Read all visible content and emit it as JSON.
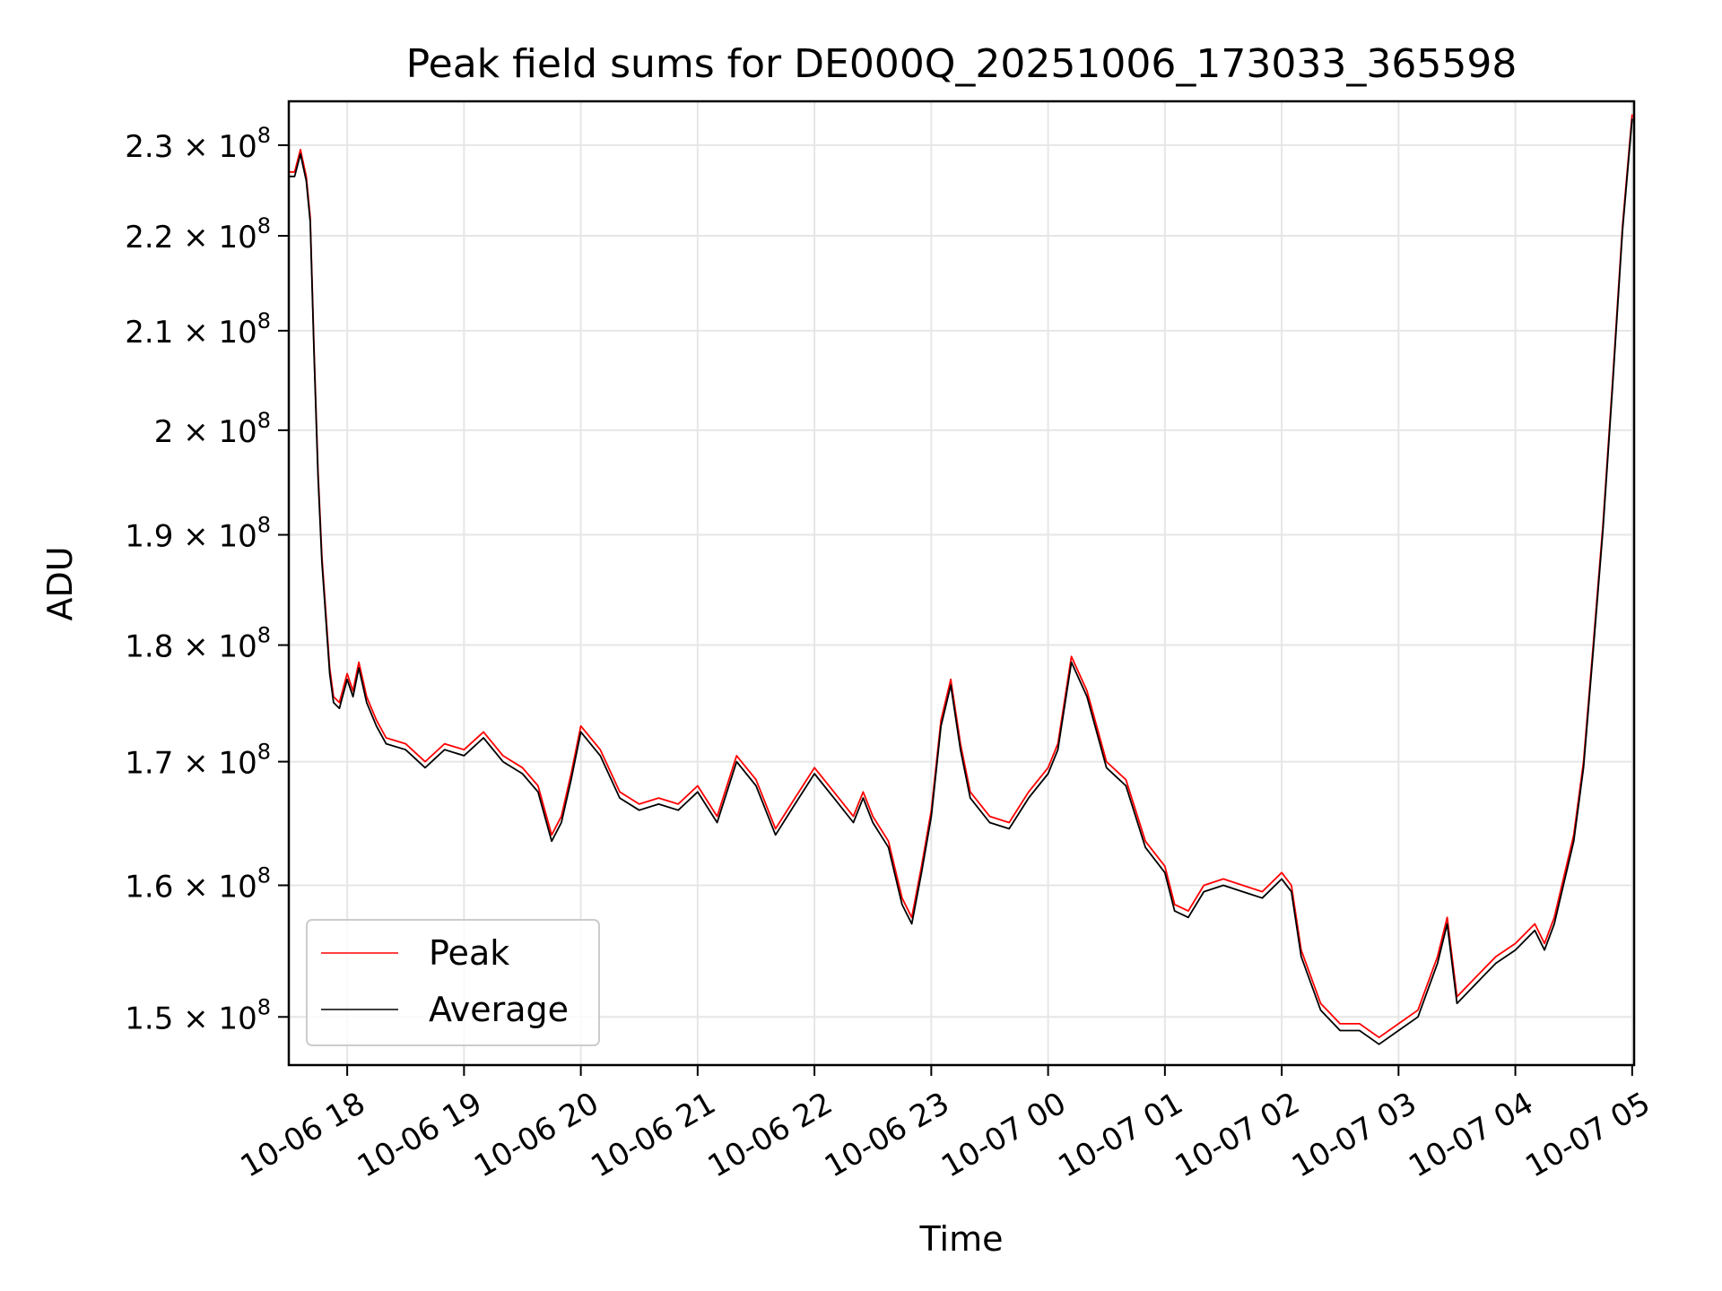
{
  "chart_data": {
    "type": "line",
    "title": "Peak field sums for DE000Q_20251006_173033_365598",
    "xlabel": "Time",
    "ylabel": "ADU",
    "x_scale": "time",
    "y_scale": "log",
    "xlim": [
      "2025-10-06 17:30",
      "2025-10-07 05:01"
    ],
    "ylim": [
      146500000,
      235000000
    ],
    "x_ticks": [
      {
        "value": "2025-10-06 18:00",
        "label": "10-06 18"
      },
      {
        "value": "2025-10-06 19:00",
        "label": "10-06 19"
      },
      {
        "value": "2025-10-06 20:00",
        "label": "10-06 20"
      },
      {
        "value": "2025-10-06 21:00",
        "label": "10-06 21"
      },
      {
        "value": "2025-10-06 22:00",
        "label": "10-06 22"
      },
      {
        "value": "2025-10-06 23:00",
        "label": "10-06 23"
      },
      {
        "value": "2025-10-07 00:00",
        "label": "10-07 00"
      },
      {
        "value": "2025-10-07 01:00",
        "label": "10-07 01"
      },
      {
        "value": "2025-10-07 02:00",
        "label": "10-07 02"
      },
      {
        "value": "2025-10-07 03:00",
        "label": "10-07 03"
      },
      {
        "value": "2025-10-07 04:00",
        "label": "10-07 04"
      },
      {
        "value": "2025-10-07 05:00",
        "label": "10-07 05"
      }
    ],
    "y_ticks": [
      {
        "value": 150000000,
        "mantissa": "1.5",
        "label": "1.5 × 10^8"
      },
      {
        "value": 160000000,
        "mantissa": "1.6",
        "label": "1.6 × 10^8"
      },
      {
        "value": 170000000,
        "mantissa": "1.7",
        "label": "1.7 × 10^8"
      },
      {
        "value": 180000000,
        "mantissa": "1.8",
        "label": "1.8 × 10^8"
      },
      {
        "value": 190000000,
        "mantissa": "1.9",
        "label": "1.9 × 10^8"
      },
      {
        "value": 200000000,
        "mantissa": "2",
        "label": "2 × 10^8"
      },
      {
        "value": 210000000,
        "mantissa": "2.1",
        "label": "2.1 × 10^8"
      },
      {
        "value": 220000000,
        "mantissa": "2.2",
        "label": "2.2 × 10^8"
      },
      {
        "value": 230000000,
        "mantissa": "2.3",
        "label": "2.3 × 10^8"
      }
    ],
    "grid": true,
    "legend": {
      "position": "lower-left"
    },
    "series": [
      {
        "name": "Peak",
        "color": "#ff0000",
        "points": [
          [
            "2025-10-06 17:30",
            227000000
          ],
          [
            "2025-10-06 17:33",
            227000000
          ],
          [
            "2025-10-06 17:36",
            229500000
          ],
          [
            "2025-10-06 17:39",
            226500000
          ],
          [
            "2025-10-06 17:41",
            222000000
          ],
          [
            "2025-10-06 17:43",
            208000000
          ],
          [
            "2025-10-06 17:45",
            196000000
          ],
          [
            "2025-10-06 17:47",
            188000000
          ],
          [
            "2025-10-06 17:49",
            183000000
          ],
          [
            "2025-10-06 17:51",
            178000000
          ],
          [
            "2025-10-06 17:53",
            175500000
          ],
          [
            "2025-10-06 17:56",
            175000000
          ],
          [
            "2025-10-06 18:00",
            177500000
          ],
          [
            "2025-10-06 18:03",
            176000000
          ],
          [
            "2025-10-06 18:06",
            178500000
          ],
          [
            "2025-10-06 18:10",
            175500000
          ],
          [
            "2025-10-06 18:15",
            173500000
          ],
          [
            "2025-10-06 18:20",
            172000000
          ],
          [
            "2025-10-06 18:30",
            171500000
          ],
          [
            "2025-10-06 18:40",
            170000000
          ],
          [
            "2025-10-06 18:50",
            171500000
          ],
          [
            "2025-10-06 19:00",
            171000000
          ],
          [
            "2025-10-06 19:10",
            172500000
          ],
          [
            "2025-10-06 19:20",
            170500000
          ],
          [
            "2025-10-06 19:30",
            169500000
          ],
          [
            "2025-10-06 19:38",
            168000000
          ],
          [
            "2025-10-06 19:45",
            164000000
          ],
          [
            "2025-10-06 19:50",
            165500000
          ],
          [
            "2025-10-06 19:55",
            169000000
          ],
          [
            "2025-10-06 20:00",
            173000000
          ],
          [
            "2025-10-06 20:10",
            171000000
          ],
          [
            "2025-10-06 20:20",
            167500000
          ],
          [
            "2025-10-06 20:30",
            166500000
          ],
          [
            "2025-10-06 20:40",
            167000000
          ],
          [
            "2025-10-06 20:50",
            166500000
          ],
          [
            "2025-10-06 21:00",
            168000000
          ],
          [
            "2025-10-06 21:10",
            165500000
          ],
          [
            "2025-10-06 21:20",
            170500000
          ],
          [
            "2025-10-06 21:30",
            168500000
          ],
          [
            "2025-10-06 21:40",
            164500000
          ],
          [
            "2025-10-06 21:50",
            167000000
          ],
          [
            "2025-10-06 22:00",
            169500000
          ],
          [
            "2025-10-06 22:10",
            167500000
          ],
          [
            "2025-10-06 22:20",
            165500000
          ],
          [
            "2025-10-06 22:25",
            167500000
          ],
          [
            "2025-10-06 22:30",
            165500000
          ],
          [
            "2025-10-06 22:38",
            163500000
          ],
          [
            "2025-10-06 22:45",
            159000000
          ],
          [
            "2025-10-06 22:50",
            157500000
          ],
          [
            "2025-10-06 22:55",
            161500000
          ],
          [
            "2025-10-06 23:00",
            166000000
          ],
          [
            "2025-10-06 23:05",
            173500000
          ],
          [
            "2025-10-06 23:10",
            177000000
          ],
          [
            "2025-10-06 23:15",
            171500000
          ],
          [
            "2025-10-06 23:20",
            167500000
          ],
          [
            "2025-10-06 23:30",
            165500000
          ],
          [
            "2025-10-06 23:40",
            165000000
          ],
          [
            "2025-10-06 23:50",
            167500000
          ],
          [
            "2025-10-07 00:00",
            169500000
          ],
          [
            "2025-10-07 00:05",
            171500000
          ],
          [
            "2025-10-07 00:12",
            179000000
          ],
          [
            "2025-10-07 00:20",
            176000000
          ],
          [
            "2025-10-07 00:30",
            170000000
          ],
          [
            "2025-10-07 00:40",
            168500000
          ],
          [
            "2025-10-07 00:50",
            163500000
          ],
          [
            "2025-10-07 01:00",
            161500000
          ],
          [
            "2025-10-07 01:05",
            158500000
          ],
          [
            "2025-10-07 01:12",
            158000000
          ],
          [
            "2025-10-07 01:20",
            160000000
          ],
          [
            "2025-10-07 01:30",
            160500000
          ],
          [
            "2025-10-07 01:40",
            160000000
          ],
          [
            "2025-10-07 01:50",
            159500000
          ],
          [
            "2025-10-07 02:00",
            161000000
          ],
          [
            "2025-10-07 02:05",
            160000000
          ],
          [
            "2025-10-07 02:10",
            155000000
          ],
          [
            "2025-10-07 02:20",
            151000000
          ],
          [
            "2025-10-07 02:30",
            149500000
          ],
          [
            "2025-10-07 02:40",
            149500000
          ],
          [
            "2025-10-07 02:50",
            148500000
          ],
          [
            "2025-10-07 03:00",
            149500000
          ],
          [
            "2025-10-07 03:10",
            150500000
          ],
          [
            "2025-10-07 03:20",
            154500000
          ],
          [
            "2025-10-07 03:25",
            157500000
          ],
          [
            "2025-10-07 03:30",
            151500000
          ],
          [
            "2025-10-07 03:40",
            153000000
          ],
          [
            "2025-10-07 03:50",
            154500000
          ],
          [
            "2025-10-07 04:00",
            155500000
          ],
          [
            "2025-10-07 04:10",
            157000000
          ],
          [
            "2025-10-07 04:15",
            155500000
          ],
          [
            "2025-10-07 04:20",
            157500000
          ],
          [
            "2025-10-07 04:30",
            164000000
          ],
          [
            "2025-10-07 04:35",
            170000000
          ],
          [
            "2025-10-07 04:40",
            180000000
          ],
          [
            "2025-10-07 04:45",
            191000000
          ],
          [
            "2025-10-07 04:50",
            205000000
          ],
          [
            "2025-10-07 04:55",
            221000000
          ],
          [
            "2025-10-07 05:00",
            233500000
          ]
        ]
      },
      {
        "name": "Average",
        "color": "#000000",
        "points": [
          [
            "2025-10-06 17:30",
            226500000
          ],
          [
            "2025-10-06 17:33",
            226500000
          ],
          [
            "2025-10-06 17:36",
            229000000
          ],
          [
            "2025-10-06 17:39",
            226000000
          ],
          [
            "2025-10-06 17:41",
            221500000
          ],
          [
            "2025-10-06 17:43",
            207500000
          ],
          [
            "2025-10-06 17:45",
            195500000
          ],
          [
            "2025-10-06 17:47",
            187500000
          ],
          [
            "2025-10-06 17:49",
            182500000
          ],
          [
            "2025-10-06 17:51",
            177500000
          ],
          [
            "2025-10-06 17:53",
            175000000
          ],
          [
            "2025-10-06 17:56",
            174500000
          ],
          [
            "2025-10-06 18:00",
            177000000
          ],
          [
            "2025-10-06 18:03",
            175500000
          ],
          [
            "2025-10-06 18:06",
            178000000
          ],
          [
            "2025-10-06 18:10",
            175000000
          ],
          [
            "2025-10-06 18:15",
            173000000
          ],
          [
            "2025-10-06 18:20",
            171500000
          ],
          [
            "2025-10-06 18:30",
            171000000
          ],
          [
            "2025-10-06 18:40",
            169500000
          ],
          [
            "2025-10-06 18:50",
            171000000
          ],
          [
            "2025-10-06 19:00",
            170500000
          ],
          [
            "2025-10-06 19:10",
            172000000
          ],
          [
            "2025-10-06 19:20",
            170000000
          ],
          [
            "2025-10-06 19:30",
            169000000
          ],
          [
            "2025-10-06 19:38",
            167500000
          ],
          [
            "2025-10-06 19:45",
            163500000
          ],
          [
            "2025-10-06 19:50",
            165000000
          ],
          [
            "2025-10-06 19:55",
            168500000
          ],
          [
            "2025-10-06 20:00",
            172500000
          ],
          [
            "2025-10-06 20:10",
            170500000
          ],
          [
            "2025-10-06 20:20",
            167000000
          ],
          [
            "2025-10-06 20:30",
            166000000
          ],
          [
            "2025-10-06 20:40",
            166500000
          ],
          [
            "2025-10-06 20:50",
            166000000
          ],
          [
            "2025-10-06 21:00",
            167500000
          ],
          [
            "2025-10-06 21:10",
            165000000
          ],
          [
            "2025-10-06 21:20",
            170000000
          ],
          [
            "2025-10-06 21:30",
            168000000
          ],
          [
            "2025-10-06 21:40",
            164000000
          ],
          [
            "2025-10-06 21:50",
            166500000
          ],
          [
            "2025-10-06 22:00",
            169000000
          ],
          [
            "2025-10-06 22:10",
            167000000
          ],
          [
            "2025-10-06 22:20",
            165000000
          ],
          [
            "2025-10-06 22:25",
            167000000
          ],
          [
            "2025-10-06 22:30",
            165000000
          ],
          [
            "2025-10-06 22:38",
            163000000
          ],
          [
            "2025-10-06 22:45",
            158500000
          ],
          [
            "2025-10-06 22:50",
            157000000
          ],
          [
            "2025-10-06 22:55",
            161000000
          ],
          [
            "2025-10-06 23:00",
            165500000
          ],
          [
            "2025-10-06 23:05",
            173000000
          ],
          [
            "2025-10-06 23:10",
            176500000
          ],
          [
            "2025-10-06 23:15",
            171000000
          ],
          [
            "2025-10-06 23:20",
            167000000
          ],
          [
            "2025-10-06 23:30",
            165000000
          ],
          [
            "2025-10-06 23:40",
            164500000
          ],
          [
            "2025-10-06 23:50",
            167000000
          ],
          [
            "2025-10-07 00:00",
            169000000
          ],
          [
            "2025-10-07 00:05",
            171000000
          ],
          [
            "2025-10-07 00:12",
            178500000
          ],
          [
            "2025-10-07 00:20",
            175500000
          ],
          [
            "2025-10-07 00:30",
            169500000
          ],
          [
            "2025-10-07 00:40",
            168000000
          ],
          [
            "2025-10-07 00:50",
            163000000
          ],
          [
            "2025-10-07 01:00",
            161000000
          ],
          [
            "2025-10-07 01:05",
            158000000
          ],
          [
            "2025-10-07 01:12",
            157500000
          ],
          [
            "2025-10-07 01:20",
            159500000
          ],
          [
            "2025-10-07 01:30",
            160000000
          ],
          [
            "2025-10-07 01:40",
            159500000
          ],
          [
            "2025-10-07 01:50",
            159000000
          ],
          [
            "2025-10-07 02:00",
            160500000
          ],
          [
            "2025-10-07 02:05",
            159500000
          ],
          [
            "2025-10-07 02:10",
            154500000
          ],
          [
            "2025-10-07 02:20",
            150500000
          ],
          [
            "2025-10-07 02:30",
            149000000
          ],
          [
            "2025-10-07 02:40",
            149000000
          ],
          [
            "2025-10-07 02:50",
            148000000
          ],
          [
            "2025-10-07 03:00",
            149000000
          ],
          [
            "2025-10-07 03:10",
            150000000
          ],
          [
            "2025-10-07 03:20",
            154000000
          ],
          [
            "2025-10-07 03:25",
            157000000
          ],
          [
            "2025-10-07 03:30",
            151000000
          ],
          [
            "2025-10-07 03:40",
            152500000
          ],
          [
            "2025-10-07 03:50",
            154000000
          ],
          [
            "2025-10-07 04:00",
            155000000
          ],
          [
            "2025-10-07 04:10",
            156500000
          ],
          [
            "2025-10-07 04:15",
            155000000
          ],
          [
            "2025-10-07 04:20",
            157000000
          ],
          [
            "2025-10-07 04:30",
            163500000
          ],
          [
            "2025-10-07 04:35",
            169500000
          ],
          [
            "2025-10-07 04:40",
            179500000
          ],
          [
            "2025-10-07 04:45",
            190500000
          ],
          [
            "2025-10-07 04:50",
            204500000
          ],
          [
            "2025-10-07 04:55",
            220500000
          ],
          [
            "2025-10-07 05:00",
            233000000
          ]
        ]
      }
    ]
  }
}
